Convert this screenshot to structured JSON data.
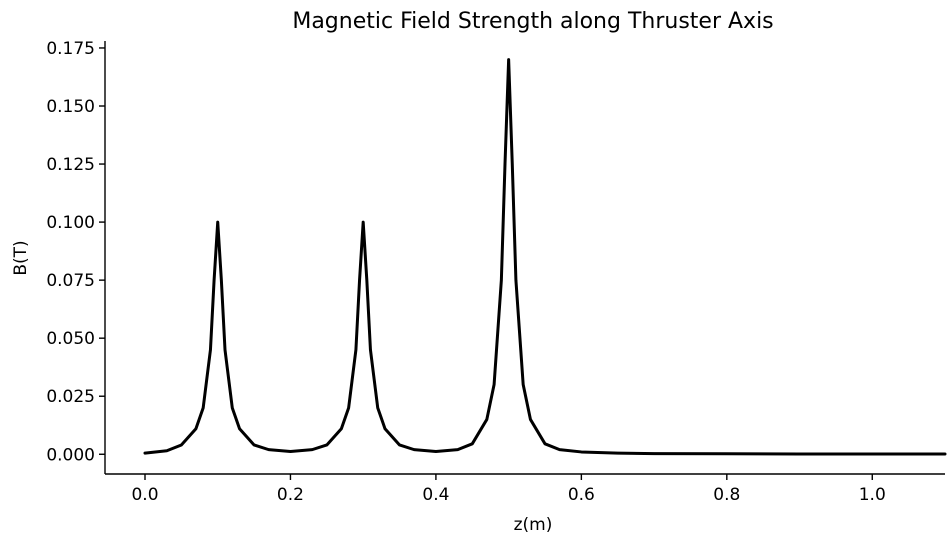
{
  "chart_data": {
    "type": "line",
    "title": "Magnetic Field Strength along Thruster Axis",
    "xlabel": "z(m)",
    "ylabel": "B(T)",
    "xlim": [
      -0.055,
      1.1
    ],
    "ylim": [
      -0.0085,
      0.178
    ],
    "xticks": [
      0.0,
      0.2,
      0.4,
      0.6,
      0.8,
      1.0
    ],
    "xtick_labels": [
      "0.0",
      "0.2",
      "0.4",
      "0.6",
      "0.8",
      "1.0"
    ],
    "yticks": [
      0.0,
      0.025,
      0.05,
      0.075,
      0.1,
      0.125,
      0.15,
      0.175
    ],
    "ytick_labels": [
      "0.000",
      "0.025",
      "0.050",
      "0.075",
      "0.100",
      "0.125",
      "0.150",
      "0.175"
    ],
    "grid": false,
    "series": [
      {
        "color": "#000000",
        "x": [
          0.0,
          0.03,
          0.05,
          0.07,
          0.08,
          0.09,
          0.095,
          0.1,
          0.105,
          0.11,
          0.12,
          0.13,
          0.15,
          0.17,
          0.2,
          0.23,
          0.25,
          0.27,
          0.28,
          0.29,
          0.295,
          0.3,
          0.305,
          0.31,
          0.32,
          0.33,
          0.35,
          0.37,
          0.4,
          0.43,
          0.45,
          0.47,
          0.48,
          0.49,
          0.495,
          0.5,
          0.505,
          0.51,
          0.52,
          0.53,
          0.55,
          0.57,
          0.6,
          0.65,
          0.7,
          0.8,
          0.9,
          1.0,
          1.1
        ],
        "values": [
          0.0005,
          0.0015,
          0.004,
          0.011,
          0.02,
          0.045,
          0.075,
          0.1,
          0.075,
          0.045,
          0.02,
          0.011,
          0.004,
          0.002,
          0.0012,
          0.002,
          0.004,
          0.011,
          0.02,
          0.045,
          0.075,
          0.1,
          0.075,
          0.045,
          0.02,
          0.011,
          0.004,
          0.002,
          0.0012,
          0.002,
          0.0045,
          0.015,
          0.03,
          0.075,
          0.125,
          0.17,
          0.125,
          0.075,
          0.03,
          0.015,
          0.0045,
          0.002,
          0.001,
          0.0005,
          0.0003,
          0.0002,
          0.0001,
          0.0001,
          0.0001
        ]
      }
    ]
  }
}
